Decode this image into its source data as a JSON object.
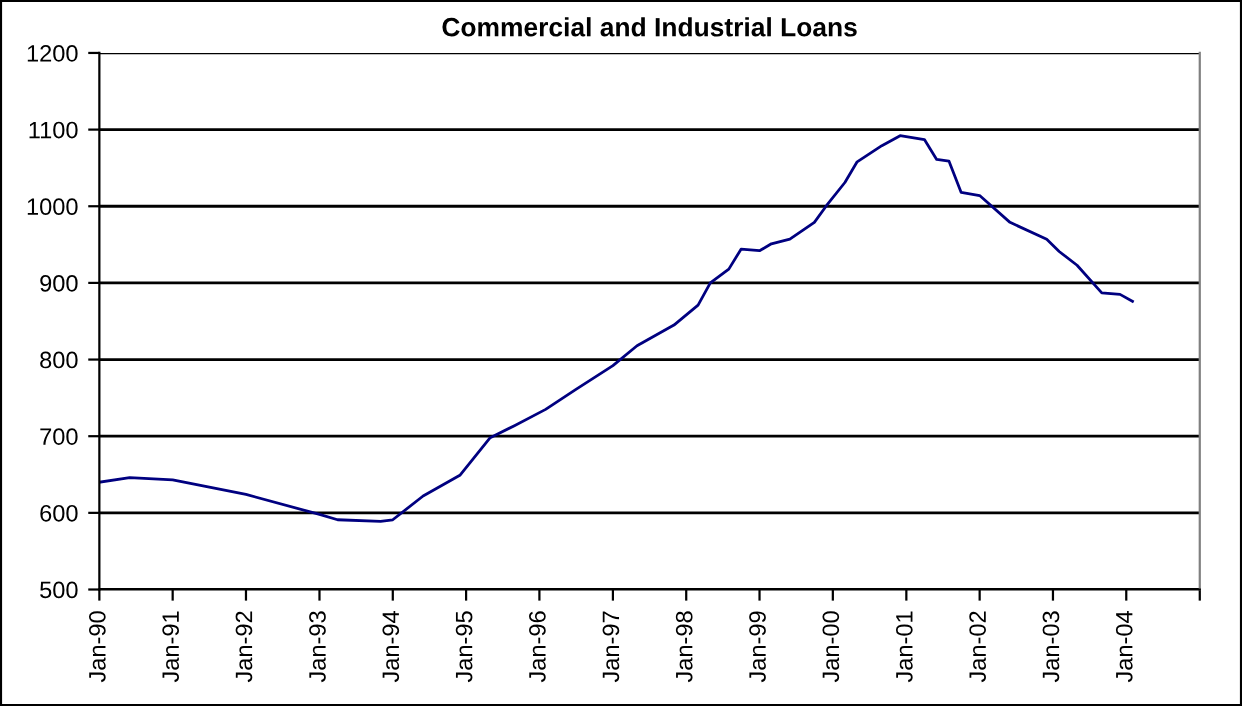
{
  "chart_data": {
    "type": "line",
    "title": "Commercial and Industrial Loans",
    "x": [
      "1990-01",
      "1990-06",
      "1991-01",
      "1992-01",
      "1993-01",
      "1993-04",
      "1993-11",
      "1994-01",
      "1994-06",
      "1994-12",
      "1995-05",
      "1995-09",
      "1996-02",
      "1996-07",
      "1997-01",
      "1997-05",
      "1997-11",
      "1998-03",
      "1998-05",
      "1998-08",
      "1998-10",
      "1999-01",
      "1999-03",
      "1999-06",
      "1999-10",
      "1999-12",
      "2000-03",
      "2000-05",
      "2000-09",
      "2000-12",
      "2001-04",
      "2001-06",
      "2001-08",
      "2001-10",
      "2002-01",
      "2002-06",
      "2002-12",
      "2003-02",
      "2003-05",
      "2003-09",
      "2003-12",
      "2004-02"
    ],
    "series": [
      {
        "color": "#000080",
        "values": [
          640,
          646,
          643,
          624,
          598,
          591,
          589,
          591,
          622,
          649,
          698,
          714,
          735,
          761,
          792,
          818,
          845,
          871,
          900,
          918,
          944,
          942,
          951,
          957,
          979,
          1001,
          1031,
          1058,
          1079,
          1092,
          1087,
          1061,
          1059,
          1018,
          1014,
          979,
          957,
          941,
          923,
          887,
          885,
          876
        ]
      }
    ],
    "xlim": [
      "1990-01",
      "2005-01"
    ],
    "xticks": [
      {
        "value": "1990-01",
        "label": "Jan-90"
      },
      {
        "value": "1991-01",
        "label": "Jan-91"
      },
      {
        "value": "1992-01",
        "label": "Jan-92"
      },
      {
        "value": "1993-01",
        "label": "Jan-93"
      },
      {
        "value": "1994-01",
        "label": "Jan-94"
      },
      {
        "value": "1995-01",
        "label": "Jan-95"
      },
      {
        "value": "1996-01",
        "label": "Jan-96"
      },
      {
        "value": "1997-01",
        "label": "Jan-97"
      },
      {
        "value": "1998-01",
        "label": "Jan-98"
      },
      {
        "value": "1999-01",
        "label": "Jan-99"
      },
      {
        "value": "2000-01",
        "label": "Jan-00"
      },
      {
        "value": "2001-01",
        "label": "Jan-01"
      },
      {
        "value": "2002-01",
        "label": "Jan-02"
      },
      {
        "value": "2003-01",
        "label": "Jan-03"
      },
      {
        "value": "2004-01",
        "label": "Jan-04"
      },
      {
        "value": "2005-01",
        "label": null
      }
    ],
    "ylim": [
      500,
      1200
    ],
    "yticks": [
      500,
      600,
      700,
      800,
      900,
      1000,
      1100,
      1200
    ],
    "grid": "y",
    "legend": false,
    "marker": "none",
    "line_style": "solid"
  }
}
